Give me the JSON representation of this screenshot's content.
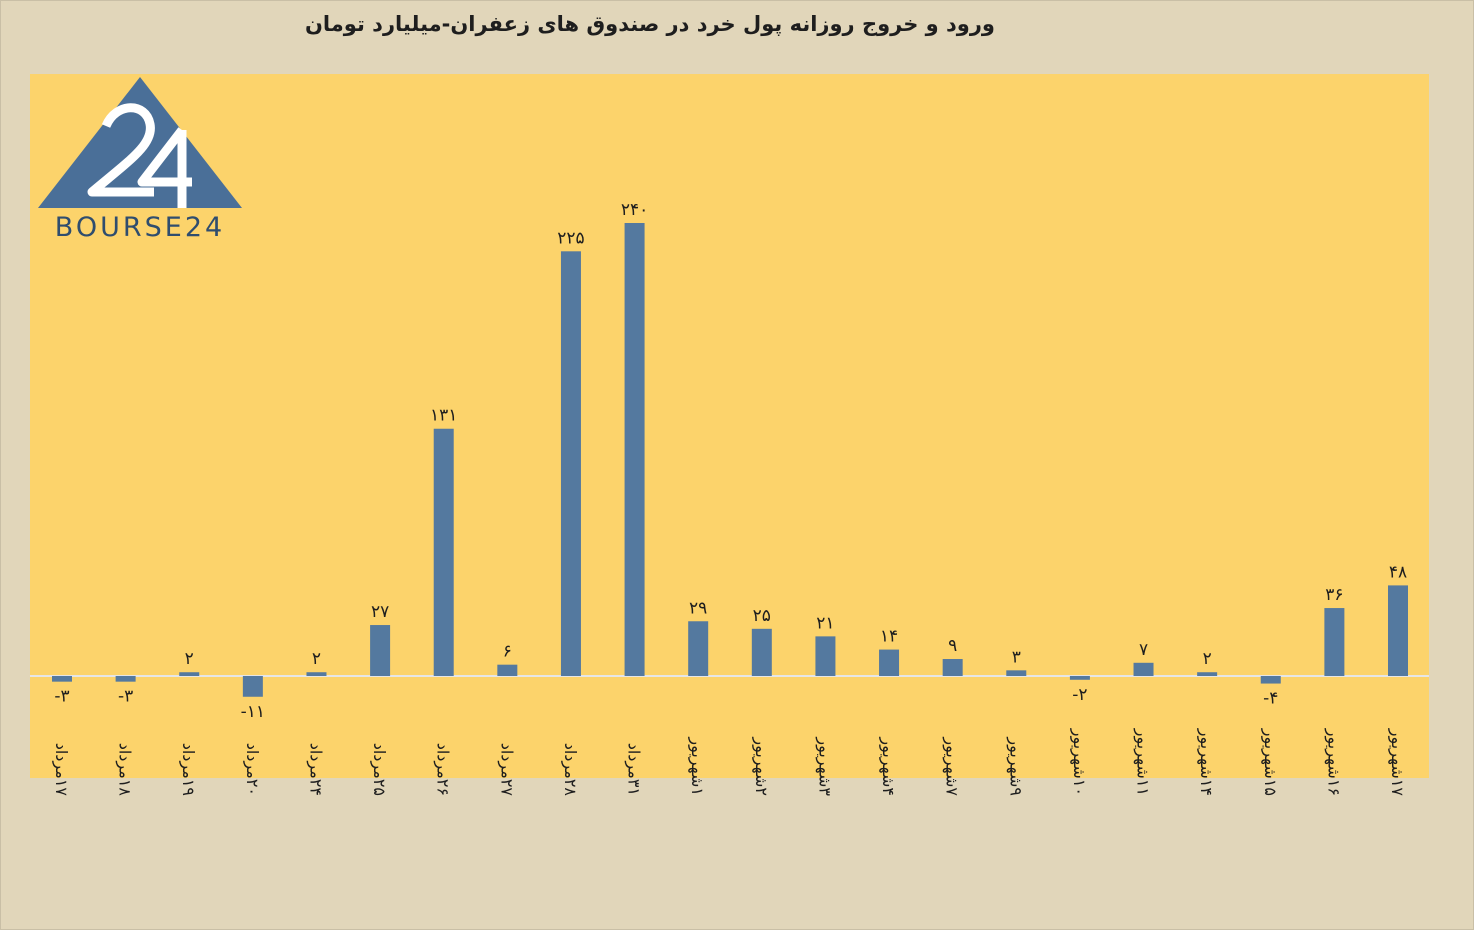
{
  "chart_data": {
    "type": "bar",
    "title": "ورود و خروج روزانه پول خرد در صندوق های زعفران-میلیارد تومان",
    "categories": [
      "۱۷مرداد",
      "۱۸مرداد",
      "۱۹مرداد",
      "۲۰مرداد",
      "۲۴مرداد",
      "۲۵مرداد",
      "۲۶مرداد",
      "۲۷مرداد",
      "۲۸مرداد",
      "۳۱مرداد",
      "۱شهریور",
      "۲شهریور",
      "۳شهریور",
      "۴شهریور",
      "۷شهریور",
      "۹شهریور",
      "۱۰شهریور",
      "۱۱شهریور",
      "۱۴شهریور",
      "۱۵شهریور",
      "۱۶شهریور",
      "۱۷شهریور"
    ],
    "values": [
      -3,
      -3,
      2,
      -11,
      2,
      27,
      131,
      6,
      225,
      240,
      29,
      25,
      21,
      14,
      9,
      3,
      -2,
      7,
      2,
      -4,
      36,
      48
    ],
    "value_labels": [
      "-۳",
      "-۳",
      "۲",
      "-۱۱",
      "۲",
      "۲۷",
      "۱۳۱",
      "۶",
      "۲۲۵",
      "۲۴۰",
      "۲۹",
      "۲۵",
      "۲۱",
      "۱۴",
      "۹",
      "۳",
      "-۲",
      "۷",
      "۲",
      "-۴",
      "۳۶",
      "۴۸"
    ],
    "xlabel": "",
    "ylabel": "",
    "ylim": [
      -50,
      250
    ],
    "grid": false,
    "legend": "none",
    "colors": {
      "bar": "#54799f",
      "plot_background": "#fcd36b",
      "page_background": "#e1d6ba",
      "zero_line": "#e6e6e6"
    }
  },
  "logo": {
    "text": "BOURSE24",
    "icon": "bourse24-triangle-logo-icon",
    "color": "#4a6f98"
  }
}
